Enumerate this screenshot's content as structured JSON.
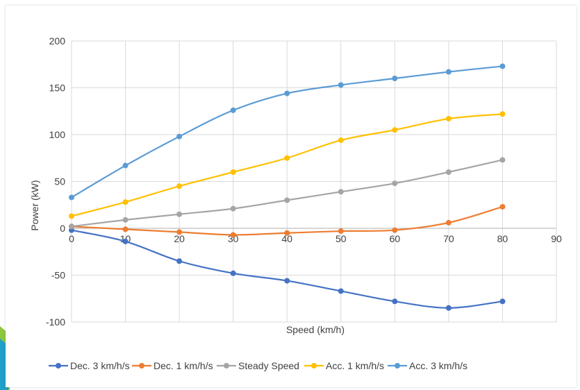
{
  "chart_data": {
    "type": "line",
    "title": "",
    "xlabel": "Speed (km/h)",
    "ylabel": "Power (kW)",
    "xlim": [
      0,
      90
    ],
    "ylim": [
      -100,
      200
    ],
    "x_ticks": [
      0,
      10,
      20,
      30,
      40,
      50,
      60,
      70,
      80,
      90
    ],
    "y_ticks": [
      -100,
      -50,
      0,
      50,
      100,
      150,
      200
    ],
    "grid": true,
    "smooth": true,
    "legend_position": "bottom",
    "x": [
      0,
      10,
      20,
      30,
      40,
      50,
      60,
      70,
      80
    ],
    "series": [
      {
        "name": "Dec. 3 km/h/s",
        "color": "#4472C4",
        "values": [
          -2,
          -14,
          -35,
          -48,
          -56,
          -67,
          -78,
          -85,
          -78
        ]
      },
      {
        "name": "Dec. 1 km/h/s",
        "color": "#ED7D31",
        "values": [
          2,
          -1,
          -4,
          -7,
          -5,
          -3,
          -2,
          6,
          23
        ]
      },
      {
        "name": "Steady Speed",
        "color": "#A5A5A5",
        "values": [
          2,
          9,
          15,
          21,
          30,
          39,
          48,
          60,
          73
        ]
      },
      {
        "name": "Acc. 1 km/h/s",
        "color": "#FFC000",
        "values": [
          13,
          28,
          45,
          60,
          75,
          94,
          105,
          117,
          122
        ]
      },
      {
        "name": "Acc. 3 km/h/s",
        "color": "#5B9BD5",
        "values": [
          33,
          67,
          98,
          126,
          144,
          153,
          160,
          167,
          173
        ]
      }
    ]
  }
}
